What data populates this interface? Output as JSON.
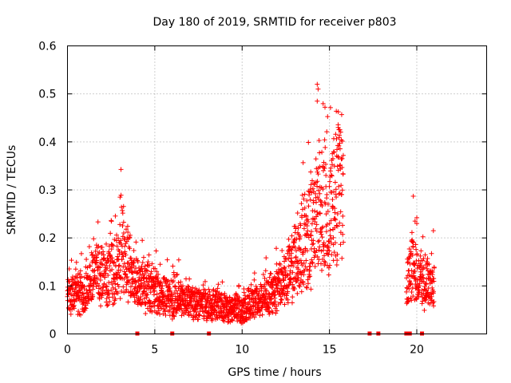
{
  "chart_data": {
    "type": "scatter",
    "title": "Day 180 of 2019, SRMTID for receiver p803",
    "xlabel": "GPS time / hours",
    "ylabel": "SRMTID / TECUs",
    "xlim": [
      0,
      24
    ],
    "ylim": [
      0,
      0.6
    ],
    "grid": true,
    "x_ticks": [
      0,
      5,
      10,
      15,
      20
    ],
    "x_tick_labels": [
      "0",
      "5",
      "10",
      "15",
      "20"
    ],
    "y_ticks": [
      0,
      0.1,
      0.2,
      0.3,
      0.4,
      0.5,
      0.6
    ],
    "y_tick_labels": [
      "0",
      "0.1",
      "0.2",
      "0.3",
      "0.4",
      "0.5",
      "0.6"
    ],
    "marker": "plus",
    "color": "#ff0000",
    "series": [
      {
        "name": "SRMTID",
        "segments": [
          {
            "x_start": 0.0,
            "x_end": 21.0,
            "skip": [
              [
                15.8,
                19.4
              ]
            ]
          }
        ],
        "trend": [
          [
            0.0,
            0.085
          ],
          [
            0.5,
            0.08
          ],
          [
            1.0,
            0.09
          ],
          [
            1.5,
            0.12
          ],
          [
            2.0,
            0.12
          ],
          [
            2.5,
            0.13
          ],
          [
            3.0,
            0.16
          ],
          [
            3.3,
            0.17
          ],
          [
            3.6,
            0.13
          ],
          [
            4.0,
            0.11
          ],
          [
            4.5,
            0.1
          ],
          [
            5.0,
            0.095
          ],
          [
            5.5,
            0.08
          ],
          [
            6.0,
            0.075
          ],
          [
            7.0,
            0.065
          ],
          [
            8.0,
            0.06
          ],
          [
            9.0,
            0.055
          ],
          [
            10.0,
            0.05
          ],
          [
            10.5,
            0.06
          ],
          [
            11.0,
            0.07
          ],
          [
            11.5,
            0.08
          ],
          [
            12.0,
            0.09
          ],
          [
            12.5,
            0.11
          ],
          [
            13.0,
            0.15
          ],
          [
            13.5,
            0.18
          ],
          [
            14.0,
            0.22
          ],
          [
            14.3,
            0.26
          ],
          [
            14.6,
            0.24
          ],
          [
            15.0,
            0.22
          ],
          [
            15.3,
            0.3
          ],
          [
            15.6,
            0.3
          ],
          [
            15.8,
            0.28
          ],
          [
            19.4,
            0.1
          ],
          [
            19.6,
            0.12
          ],
          [
            19.8,
            0.15
          ],
          [
            20.0,
            0.12
          ],
          [
            20.5,
            0.11
          ],
          [
            21.0,
            0.1
          ]
        ],
        "peaks": [
          {
            "x": 14.3,
            "y": 0.52
          },
          {
            "x": 14.35,
            "y": 0.51
          },
          {
            "x": 14.3,
            "y": 0.485
          },
          {
            "x": 15.5,
            "y": 0.43
          },
          {
            "x": 15.6,
            "y": 0.425
          },
          {
            "x": 19.8,
            "y": 0.287
          },
          {
            "x": 19.9,
            "y": 0.235
          },
          {
            "x": 20.0,
            "y": 0.23
          },
          {
            "x": 20.95,
            "y": 0.215
          },
          {
            "x": 3.0,
            "y": 0.228
          }
        ]
      }
    ],
    "gap_markers_x": [
      4.0,
      6.0,
      8.1,
      17.3,
      17.8,
      19.4,
      19.6,
      20.3
    ]
  }
}
